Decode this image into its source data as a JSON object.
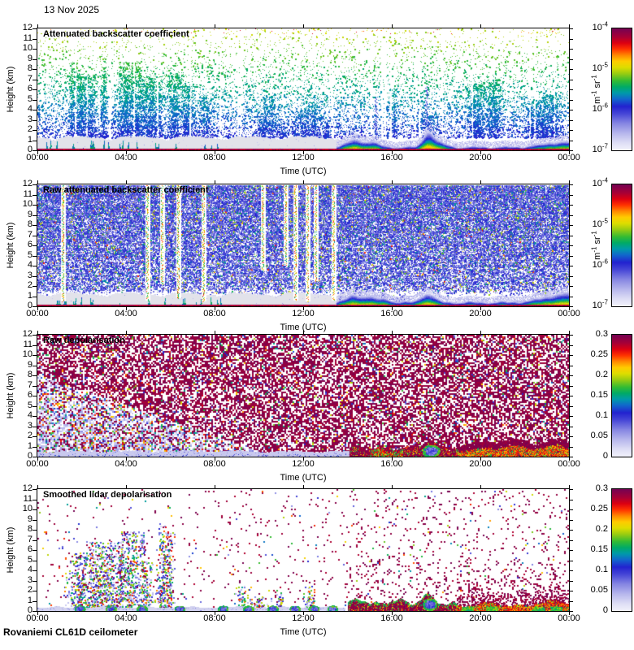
{
  "date_label": "13 Nov 2025",
  "footer": "Rovaniemi CL61D ceilometer",
  "colormap_stops": [
    [
      0.0,
      "#f2f2fb"
    ],
    [
      0.06,
      "#dedef5"
    ],
    [
      0.14,
      "#b6b6ec"
    ],
    [
      0.22,
      "#8686e2"
    ],
    [
      0.3,
      "#4646d6"
    ],
    [
      0.36,
      "#2222cf"
    ],
    [
      0.42,
      "#1166cc"
    ],
    [
      0.47,
      "#0099aa"
    ],
    [
      0.52,
      "#00aa66"
    ],
    [
      0.57,
      "#33bb33"
    ],
    [
      0.63,
      "#99cc11"
    ],
    [
      0.68,
      "#dddd00"
    ],
    [
      0.73,
      "#ffcc00"
    ],
    [
      0.78,
      "#ff8800"
    ],
    [
      0.83,
      "#ff3300"
    ],
    [
      0.88,
      "#dd0011"
    ],
    [
      0.93,
      "#a80035"
    ],
    [
      1.0,
      "#740253"
    ]
  ],
  "chart_data": [
    {
      "type": "heatmap",
      "id": "attenuated-backscatter",
      "title": "Attenuated backscatter coefficient",
      "xlabel": "Time (UTC)",
      "ylabel": "Height (km)",
      "x_range_hours": [
        0,
        24
      ],
      "y_range_km": [
        0,
        12
      ],
      "x_tick_labels": [
        "00:00",
        "04:00",
        "08:00",
        "12:00",
        "16:00",
        "20:00",
        "00:00"
      ],
      "y_tick_labels": [
        0,
        1,
        2,
        3,
        4,
        5,
        6,
        7,
        8,
        9,
        10,
        11,
        12
      ],
      "colorbar": {
        "scale": "log",
        "min": "1e-7",
        "max": "1e-4",
        "unit": "m^-1 sr^-1",
        "labels_top_to_bottom": [
          "10^-4",
          "10^-5",
          "10^-6",
          "10^-7"
        ]
      },
      "description": "Sparse green/teal speckle fading to blue with depth; dense cloud/precip plumes 01:30-07:30 up to 9 km; grey boundary layer 0-1.3 km until 14:00; strong red/orange aerosol layer near ground after 14:00 with hump at 17:36; blue virga columns at 15:15 and 17:33.",
      "gen": {
        "type": "backscatter_processed",
        "seed": 11,
        "plume_windows": [
          {
            "t0": 1.4,
            "t1": 7.7,
            "count": 18,
            "hmax": 9.5
          },
          {
            "t0": 8.6,
            "t1": 13.9,
            "count": 7,
            "hmax": 5.5
          },
          {
            "t0": 15.0,
            "t1": 23.6,
            "count": 10,
            "hmax": 7
          }
        ],
        "blue_columns": [
          {
            "t": 15.25,
            "h": 5.2
          },
          {
            "t": 17.55,
            "h": 6.3
          }
        ],
        "gray_band": {
          "t0": 0,
          "t1": 13.9,
          "h": 1.35
        },
        "ground_spikes": {
          "t0": 0.2,
          "t1": 8.3,
          "count": 30,
          "hmax": 0.9
        },
        "ground_layer": {
          "t0": 13.5,
          "base_h": 0.42,
          "humps": [
            {
              "t": 14.3,
              "h": 0.75,
              "w": 0.35
            },
            {
              "t": 15.1,
              "h": 0.5,
              "w": 0.3
            },
            {
              "t": 17.62,
              "h": 1.45,
              "w": 0.22
            },
            {
              "t": 18.1,
              "h": 0.5,
              "w": 0.3
            },
            {
              "t": 23.7,
              "h": 0.55,
              "w": 0.8
            }
          ]
        }
      }
    },
    {
      "type": "heatmap",
      "id": "raw-attenuated-backscatter",
      "title": "Raw attenuated backscatter coefficient",
      "xlabel": "Time (UTC)",
      "ylabel": "Height (km)",
      "x_range_hours": [
        0,
        24
      ],
      "y_range_km": [
        0,
        12
      ],
      "x_tick_labels": [
        "00:00",
        "04:00",
        "08:00",
        "12:00",
        "16:00",
        "20:00",
        "00:00"
      ],
      "y_tick_labels": [
        0,
        1,
        2,
        3,
        4,
        5,
        6,
        7,
        8,
        9,
        10,
        11,
        12
      ],
      "colorbar": {
        "scale": "log",
        "min": "1e-7",
        "max": "1e-4",
        "unit": "m^-1 sr^-1",
        "labels_top_to_bottom": [
          "10^-4",
          "10^-5",
          "10^-6",
          "10^-7"
        ]
      },
      "description": "Dense blue photon noise over the whole range; vertical green/yellow/orange precipitation streaks; grey boundary layer below 1.3 km until 14:00; red/orange ground layer after 14:00 thickening toward midnight.",
      "gen": {
        "type": "backscatter_raw",
        "seed": 22,
        "streaks": [
          {
            "t": 1.15,
            "hbot": 0.5
          },
          {
            "t": 4.95,
            "hbot": 0.6
          },
          {
            "t": 5.6,
            "hbot": 2.2
          },
          {
            "t": 6.35,
            "hbot": 0.8
          },
          {
            "t": 7.5,
            "hbot": 0.5
          },
          {
            "t": 10.15,
            "hbot": 3.5
          },
          {
            "t": 11.2,
            "hbot": 4.0
          },
          {
            "t": 11.65,
            "hbot": 0.6
          },
          {
            "t": 12.2,
            "hbot": 0.5
          },
          {
            "t": 12.55,
            "hbot": 2.5
          },
          {
            "t": 13.35,
            "hbot": 0.6
          }
        ],
        "gray_band": {
          "t0": 0,
          "t1": 13.9,
          "h": 1.3
        },
        "ground_spikes": {
          "t0": 0.2,
          "t1": 8.3,
          "count": 26,
          "hmax": 0.8
        },
        "blue_fuzz": {
          "t0": 13.6,
          "t1": 16.6,
          "hmax": 1.4
        },
        "ground_layer": {
          "t0": 13.5,
          "base_h": 0.5,
          "humps": [
            {
              "t": 14.25,
              "h": 0.75,
              "w": 0.3
            },
            {
              "t": 14.9,
              "h": 0.55,
              "w": 0.25
            },
            {
              "t": 15.6,
              "h": 0.4,
              "w": 0.3
            },
            {
              "t": 17.6,
              "h": 0.9,
              "w": 0.3
            },
            {
              "t": 23.8,
              "h": 0.9,
              "w": 0.9
            }
          ]
        }
      }
    },
    {
      "type": "heatmap",
      "id": "raw-depolarisation",
      "title": "Raw depolarisation",
      "xlabel": "Time (UTC)",
      "ylabel": "Height (km)",
      "x_range_hours": [
        0,
        24
      ],
      "y_range_km": [
        0,
        12
      ],
      "x_tick_labels": [
        "00:00",
        "04:00",
        "08:00",
        "12:00",
        "16:00",
        "20:00",
        "00:00"
      ],
      "y_tick_labels": [
        0,
        1,
        2,
        3,
        4,
        5,
        6,
        7,
        8,
        9,
        10,
        11,
        12
      ],
      "colorbar": {
        "scale": "linear",
        "min": "0",
        "max": "0.3",
        "labels_top_to_bottom": [
          "0.3",
          "0.25",
          "0.2",
          "0.15",
          "0.1",
          "0.05",
          "0"
        ]
      },
      "description": "Saturated maroon noise with white gaps everywhere; lighter mixed blue/colour region below 8 km before 08:00; low-depolarisation lavender band near ground until 14:00; maroon/red ground band with red-green patch 15:00-16:30, blue blob with green rim near 17:45, red/yellow band 19:00-24:00.",
      "gen": {
        "type": "depol_raw",
        "seed": 33,
        "light_region": {
          "h0": 8.0,
          "slope": 0.75,
          "t_end": 10.5
        },
        "bottom_band": {
          "t0": 0,
          "t1": 14.1,
          "h": 0.55
        },
        "maroon_ground": {
          "t0": 14.1,
          "t1": 18.9,
          "base_h": 0.95,
          "humps": [
            {
              "t": 17.6,
              "h": 0.6,
              "w": 0.35
            }
          ]
        },
        "red_green_patch": {
          "t0": 15.05,
          "t1": 16.45,
          "h": 0.75
        },
        "blue_blob": {
          "t": 17.75,
          "h": 0.6,
          "rt": 0.38,
          "rh": 0.55
        },
        "red_ground": {
          "t0": 18.9,
          "t1": 24,
          "base_h": 0.85,
          "humps": [
            {
              "t": 21.4,
              "h": 0.35,
              "w": 0.7
            },
            {
              "t": 23.6,
              "h": 0.45,
              "w": 0.5
            }
          ]
        }
      }
    },
    {
      "type": "heatmap",
      "id": "smoothed-lidar-depolarisation",
      "title": "Smoothed lidar depolarisation",
      "xlabel": "Time (UTC)",
      "ylabel": "Height (km)",
      "x_range_hours": [
        0,
        24
      ],
      "y_range_km": [
        0,
        12
      ],
      "x_tick_labels": [
        "00:00",
        "04:00",
        "08:00",
        "12:00",
        "16:00",
        "20:00",
        "00:00"
      ],
      "y_tick_labels": [
        0,
        1,
        2,
        3,
        4,
        5,
        6,
        7,
        8,
        9,
        10,
        11,
        12
      ],
      "colorbar": {
        "scale": "linear",
        "min": "0",
        "max": "0.3",
        "labels_top_to_bottom": [
          "0.3",
          "0.25",
          "0.2",
          "0.15",
          "0.1",
          "0.05",
          "0"
        ]
      },
      "description": "Mostly white with sparse maroon speckles; mixed colourful plume speckles below 8 km before 08:00; lavender low band with blue blobs until 14:00; maroon blobs with green fringes 14:00-19:00, blue blob at 17:42, red/orange ground band with green patches 19:00-24:00.",
      "gen": {
        "type": "depol_smoothed",
        "seed": 44,
        "plume_windows": [
          {
            "t0": 1.3,
            "t1": 7.8,
            "count": 14,
            "hmax": 8.5
          },
          {
            "t0": 8.6,
            "t1": 13.6,
            "count": 5,
            "hmax": 3.0
          }
        ],
        "bottom_band": {
          "t0": 0,
          "t1": 13.9,
          "h": 0.42
        },
        "blue_blobs_t": [
          1.9,
          3.3,
          4.7,
          6.4,
          8.35,
          9.5,
          10.6,
          11.6,
          12.45,
          13.3
        ],
        "maroon_ground": {
          "t0": 14.0,
          "t1": 18.9,
          "base_h": 0.8,
          "humps": [
            {
              "t": 14.5,
              "h": 0.5,
              "w": 0.3
            },
            {
              "t": 16.2,
              "h": 0.45,
              "w": 0.35
            },
            {
              "t": 17.6,
              "h": 0.9,
              "w": 0.3
            }
          ]
        },
        "blue_blob": {
          "t": 17.7,
          "h": 0.7,
          "rt": 0.3,
          "rh": 0.55
        },
        "red_ground": {
          "t0": 18.9,
          "t1": 24,
          "base_h": 0.62,
          "humps": [
            {
              "t": 20.4,
              "h": 0.3,
              "w": 0.4
            },
            {
              "t": 23.3,
              "h": 0.5,
              "w": 0.6
            }
          ]
        },
        "green_patches_t": [
          19.4,
          20.5,
          22.6,
          23.4
        ]
      }
    }
  ]
}
